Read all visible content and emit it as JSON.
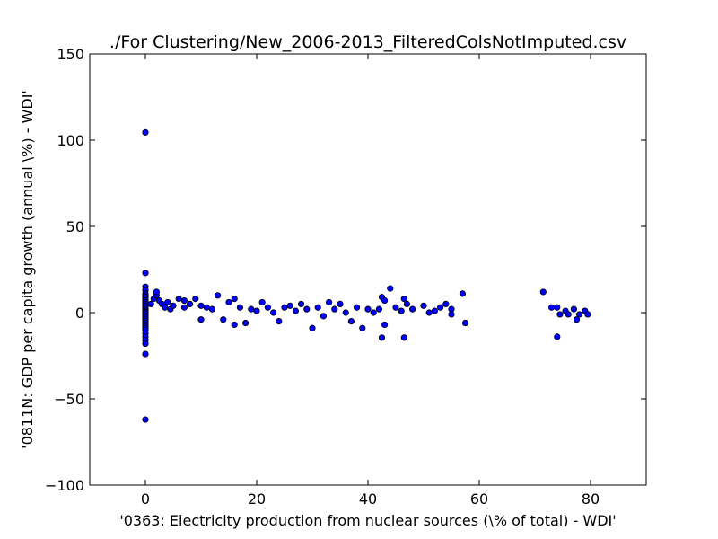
{
  "chart_data": {
    "type": "scatter",
    "title": "./For Clustering/New_2006-2013_FilteredColsNotImputed.csv",
    "xlabel": "'0363: Electricity production from nuclear sources  (\\% of total) - WDI'",
    "ylabel": "'0811N: GDP per capita growth  (annual \\%) - WDI'",
    "xlim": [
      -10,
      90
    ],
    "ylim": [
      -100,
      150
    ],
    "xticks": [
      0,
      20,
      40,
      60,
      80
    ],
    "xtick_labels": [
      "0",
      "20",
      "40",
      "60",
      "80"
    ],
    "yticks": [
      -100,
      -50,
      0,
      50,
      100,
      150
    ],
    "ytick_labels": [
      "−100",
      "−50",
      "0",
      "50",
      "100",
      "150"
    ],
    "grid": false,
    "marker_color": "#0000ff",
    "marker_edge": "#000000",
    "series": [
      {
        "points": [
          [
            0,
            104.5
          ],
          [
            0,
            23
          ],
          [
            0,
            15
          ],
          [
            0,
            13
          ],
          [
            0,
            11
          ],
          [
            0,
            10
          ],
          [
            0,
            9
          ],
          [
            0,
            8
          ],
          [
            0,
            7
          ],
          [
            0,
            6
          ],
          [
            0,
            5
          ],
          [
            0,
            4
          ],
          [
            0,
            3
          ],
          [
            0,
            2
          ],
          [
            0,
            1
          ],
          [
            0,
            0.5
          ],
          [
            0,
            0
          ],
          [
            0,
            -1
          ],
          [
            0,
            -2
          ],
          [
            0,
            -3
          ],
          [
            0,
            -4
          ],
          [
            0,
            -5
          ],
          [
            0,
            -6
          ],
          [
            0,
            -7
          ],
          [
            0,
            -8
          ],
          [
            0,
            -9
          ],
          [
            0,
            -10
          ],
          [
            0,
            -12
          ],
          [
            0,
            -14
          ],
          [
            0,
            -16
          ],
          [
            0,
            -18
          ],
          [
            0,
            -24
          ],
          [
            0,
            -62
          ],
          [
            1,
            5
          ],
          [
            1.5,
            8
          ],
          [
            2,
            10
          ],
          [
            2,
            12
          ],
          [
            2.5,
            7
          ],
          [
            3,
            5
          ],
          [
            3.5,
            3
          ],
          [
            4,
            6
          ],
          [
            4.5,
            2
          ],
          [
            5,
            4
          ],
          [
            6,
            8
          ],
          [
            7,
            3
          ],
          [
            7,
            7
          ],
          [
            8,
            5
          ],
          [
            9,
            8
          ],
          [
            10,
            4
          ],
          [
            10,
            -4
          ],
          [
            11,
            3
          ],
          [
            12,
            2
          ],
          [
            13,
            10
          ],
          [
            14,
            -4
          ],
          [
            15,
            6
          ],
          [
            16,
            8
          ],
          [
            16,
            -7
          ],
          [
            17,
            3
          ],
          [
            18,
            -6
          ],
          [
            19,
            2
          ],
          [
            20,
            1
          ],
          [
            21,
            6
          ],
          [
            22,
            3
          ],
          [
            23,
            0
          ],
          [
            24,
            -5
          ],
          [
            25,
            3
          ],
          [
            26,
            4
          ],
          [
            27,
            1
          ],
          [
            28,
            5
          ],
          [
            29,
            2
          ],
          [
            30,
            -9
          ],
          [
            31,
            3
          ],
          [
            32,
            -2
          ],
          [
            33,
            6
          ],
          [
            34,
            2
          ],
          [
            35,
            5
          ],
          [
            36,
            0
          ],
          [
            37,
            -5
          ],
          [
            38,
            3
          ],
          [
            39,
            -9
          ],
          [
            40,
            2
          ],
          [
            41,
            0
          ],
          [
            42,
            2
          ],
          [
            42.5,
            9
          ],
          [
            43,
            7
          ],
          [
            43,
            -7
          ],
          [
            42.5,
            -14.5
          ],
          [
            44,
            14
          ],
          [
            45,
            3
          ],
          [
            46,
            1
          ],
          [
            46.5,
            8
          ],
          [
            46.5,
            -14.5
          ],
          [
            47,
            5
          ],
          [
            48,
            2
          ],
          [
            50,
            4
          ],
          [
            51,
            0
          ],
          [
            52,
            1
          ],
          [
            53,
            3
          ],
          [
            54,
            5
          ],
          [
            55,
            2
          ],
          [
            55,
            -1
          ],
          [
            57,
            11
          ],
          [
            57.5,
            -6
          ],
          [
            71.5,
            12
          ],
          [
            73,
            3
          ],
          [
            74,
            3
          ],
          [
            74.5,
            -1
          ],
          [
            74,
            -14
          ],
          [
            75.5,
            1
          ],
          [
            76,
            -1
          ],
          [
            77,
            2
          ],
          [
            77.5,
            -4
          ],
          [
            78,
            -1
          ],
          [
            79,
            1
          ],
          [
            79.5,
            -1
          ]
        ]
      }
    ]
  }
}
